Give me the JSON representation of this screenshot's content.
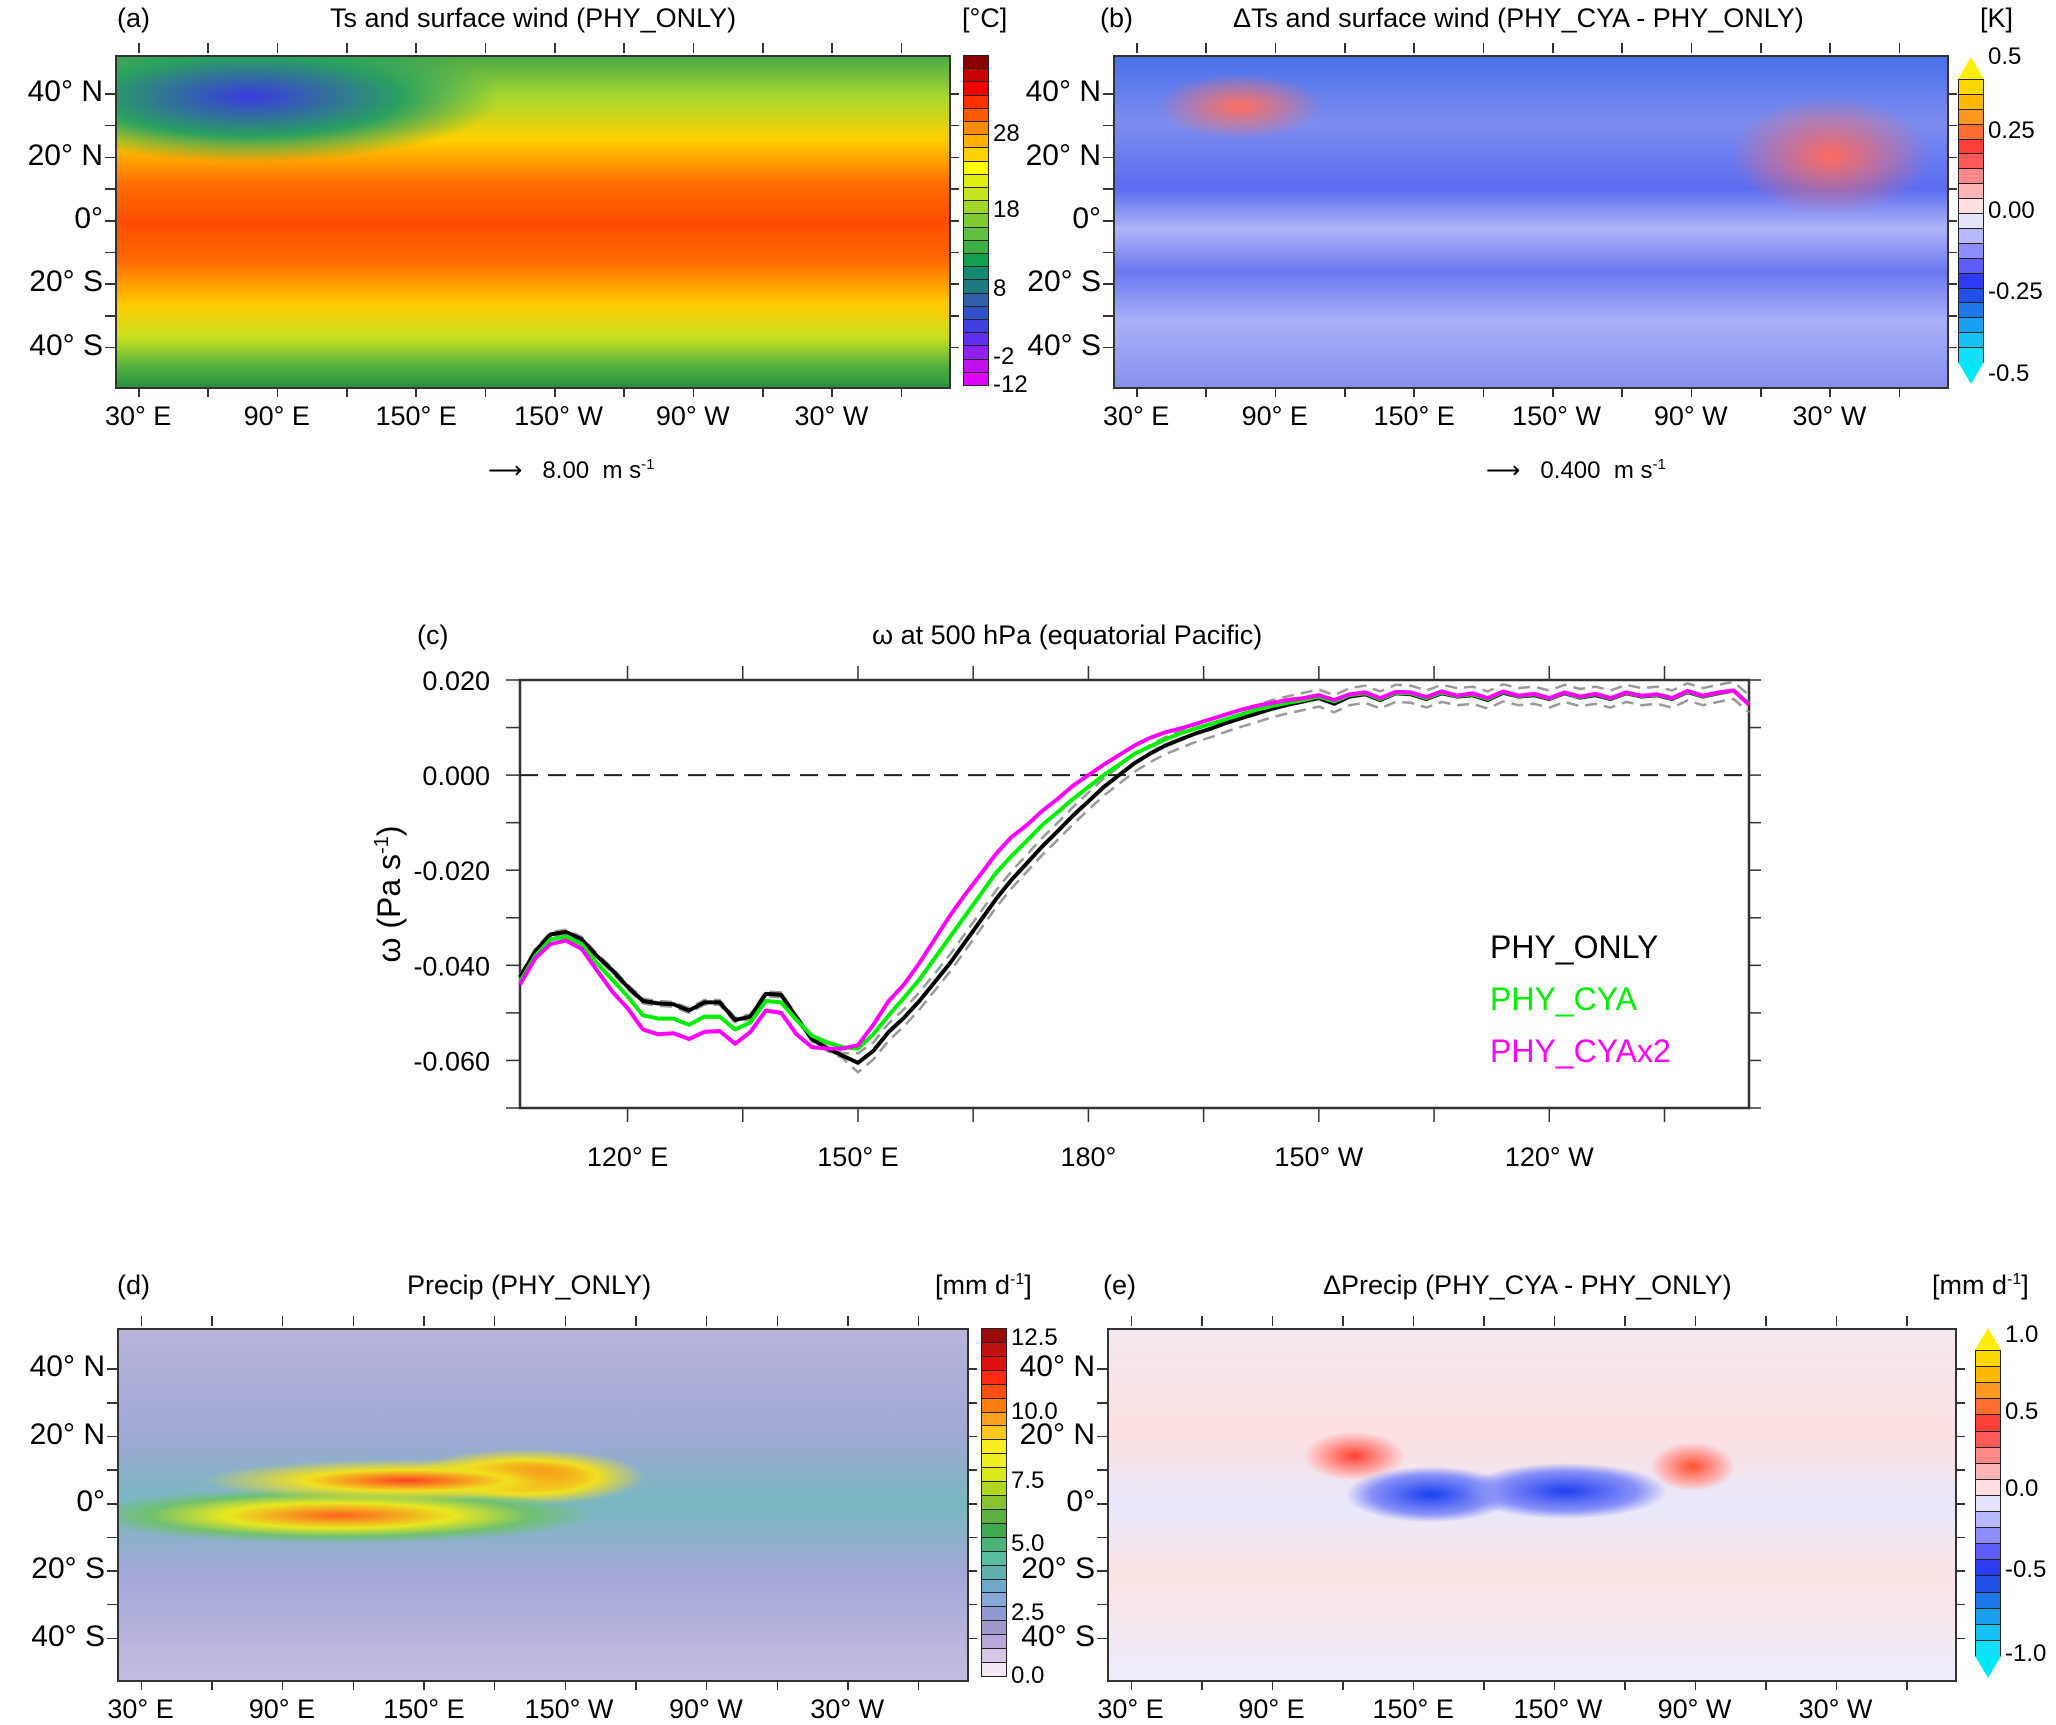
{
  "figure": {
    "panels": {
      "a": {
        "letter": "(a)",
        "title": "Ts and surface wind (PHY_ONLY)",
        "units": "[°C]",
        "lat_labels": [
          "40° N",
          "20° N",
          "0°",
          "20° S",
          "40° S"
        ],
        "lon_labels": [
          "30° E",
          "90° E",
          "150° E",
          "150° W",
          "90° W",
          "30° W"
        ],
        "colorbar": {
          "labels": [
            "28",
            "18",
            "8",
            "-2",
            "-12"
          ],
          "colors": [
            "#8b0000",
            "#c80000",
            "#f00000",
            "#ff3000",
            "#ff5a00",
            "#ff8c00",
            "#ffb000",
            "#ffd200",
            "#ffff00",
            "#e0ef10",
            "#c4e420",
            "#a0d82a",
            "#80cc30",
            "#60c040",
            "#3cb040",
            "#10a050",
            "#108a70",
            "#207880",
            "#3060a8",
            "#3050c8",
            "#4040e0",
            "#6030f0",
            "#9020f0",
            "#c010f0",
            "#e000ff"
          ]
        },
        "ref_vector": {
          "value": "8.00",
          "units_base": "m s",
          "units_exp": "-1"
        }
      },
      "b": {
        "letter": "(b)",
        "title": "ΔTs and surface wind (PHY_CYA - PHY_ONLY)",
        "units": "[K]",
        "lat_labels": [
          "40° N",
          "20° N",
          "0°",
          "20° S",
          "40° S"
        ],
        "lon_labels": [
          "30° E",
          "90° E",
          "150° E",
          "150° W",
          "90° W",
          "30° W"
        ],
        "colorbar": {
          "labels": [
            "0.5",
            "0.25",
            "0.00",
            "-0.25",
            "-0.5"
          ],
          "top_color": "#ffee00",
          "bottom_color": "#00e8f8",
          "colors": [
            "#ffd800",
            "#ffb800",
            "#ff9820",
            "#ff7030",
            "#ff4038",
            "#ff5a5a",
            "#ff8888",
            "#ffb4b4",
            "#ffe0e0",
            "#e4e4ff",
            "#b8b8ff",
            "#8c8cff",
            "#5c5cf8",
            "#2c3cf0",
            "#2050e8",
            "#1c78e8",
            "#1aa0f0",
            "#18c0f8",
            "#10e0f8"
          ]
        },
        "ref_vector": {
          "value": "0.400",
          "units_base": "m s",
          "units_exp": "-1"
        }
      },
      "d": {
        "letter": "(d)",
        "title": "Precip (PHY_ONLY)",
        "units_base": "[mm d",
        "units_exp": "-1",
        "units_close": "]",
        "lat_labels": [
          "40° N",
          "20° N",
          "0°",
          "20° S",
          "40° S"
        ],
        "lon_labels": [
          "30° E",
          "90° E",
          "150° E",
          "150° W",
          "90° W",
          "30° W"
        ],
        "colorbar": {
          "labels": [
            "12.5",
            "10.0",
            "7.5",
            "5.0",
            "2.5",
            "0.0"
          ],
          "colors": [
            "#9a0a0a",
            "#c01010",
            "#e01010",
            "#ff2a10",
            "#ff5010",
            "#ff7c10",
            "#ffa020",
            "#ffc820",
            "#f8ee20",
            "#f0f020",
            "#d8e818",
            "#b0d820",
            "#88c430",
            "#5cb040",
            "#40a850",
            "#48b478",
            "#58bca0",
            "#60b0b0",
            "#70a8c8",
            "#88a8d8",
            "#9098d0",
            "#a098c8",
            "#b8a8d8",
            "#d8c8e8",
            "#f4e8f4"
          ]
        }
      },
      "e": {
        "letter": "(e)",
        "title": "ΔPrecip (PHY_CYA - PHY_ONLY)",
        "units_base": "[mm d",
        "units_exp": "-1",
        "units_close": "]",
        "lat_labels": [
          "40° N",
          "20° N",
          "0°",
          "20° S",
          "40° S"
        ],
        "lon_labels": [
          "30° E",
          "90° E",
          "150° E",
          "150° W",
          "90° W",
          "30° W"
        ],
        "colorbar": {
          "labels": [
            "1.0",
            "0.5",
            "0.0",
            "-0.5",
            "-1.0"
          ],
          "top_color": "#ffee00",
          "bottom_color": "#00e8f8",
          "colors": [
            "#ffd800",
            "#ffb800",
            "#ff9820",
            "#ff7030",
            "#ff4038",
            "#ff5a5a",
            "#ff8888",
            "#ffb4b4",
            "#ffe0e0",
            "#e4e4ff",
            "#b8b8ff",
            "#8c8cff",
            "#5c5cf8",
            "#2c3cf0",
            "#2050e8",
            "#1c78e8",
            "#1aa0f0",
            "#18c0f8",
            "#10e0f8"
          ]
        }
      }
    }
  },
  "chart_data": {
    "type": "line",
    "letter": "(c)",
    "title": "ω at 500 hPa (equatorial Pacific)",
    "xlabel": "",
    "ylabel_base": "ω (Pa s",
    "ylabel_exp": "-1",
    "ylabel_close": ")",
    "xlim": [
      106,
      266
    ],
    "ylim": [
      -0.07,
      0.02
    ],
    "x_ticks": [
      120,
      135,
      150,
      165,
      180,
      195,
      210,
      225,
      240,
      255
    ],
    "x_tick_labels": [
      {
        "x": 120,
        "label": "120°  E"
      },
      {
        "x": 150,
        "label": "150°  E"
      },
      {
        "x": 180,
        "label": "180°"
      },
      {
        "x": 210,
        "label": "150° W"
      },
      {
        "x": 240,
        "label": "120° W"
      }
    ],
    "y_ticks": [
      0.02,
      0.01,
      0.0,
      -0.01,
      -0.02,
      -0.03,
      -0.04,
      -0.05,
      -0.06,
      -0.07
    ],
    "y_tick_labels": [
      "0.020",
      "0.000",
      "-0.020",
      "-0.040",
      "-0.060"
    ],
    "zero_line": true,
    "legend": {
      "placement": "lower-right",
      "entries": [
        "PHY_ONLY",
        "PHY_CYA",
        "PHY_CYAx2"
      ]
    },
    "x": [
      106,
      108,
      110,
      112,
      114,
      116,
      118,
      120,
      122,
      124,
      126,
      128,
      130,
      132,
      134,
      136,
      138,
      140,
      142,
      144,
      146,
      148,
      150,
      152,
      154,
      156,
      158,
      160,
      162,
      164,
      166,
      168,
      170,
      172,
      174,
      176,
      178,
      180,
      182,
      184,
      186,
      188,
      190,
      192,
      194,
      196,
      198,
      200,
      202,
      204,
      206,
      208,
      210,
      212,
      214,
      216,
      218,
      220,
      222,
      224,
      226,
      228,
      230,
      232,
      234,
      236,
      238,
      240,
      242,
      244,
      246,
      248,
      250,
      252,
      254,
      256,
      258,
      260,
      262,
      264,
      266
    ],
    "series": [
      {
        "name": "PHY_ONLY",
        "color": "#000000",
        "values": [
          -0.0425,
          -0.037,
          -0.0335,
          -0.033,
          -0.0345,
          -0.038,
          -0.041,
          -0.0445,
          -0.0475,
          -0.048,
          -0.0482,
          -0.0495,
          -0.0478,
          -0.0478,
          -0.0515,
          -0.0508,
          -0.046,
          -0.0462,
          -0.051,
          -0.0555,
          -0.0575,
          -0.059,
          -0.0605,
          -0.058,
          -0.054,
          -0.051,
          -0.0475,
          -0.0435,
          -0.0395,
          -0.035,
          -0.0305,
          -0.026,
          -0.022,
          -0.0185,
          -0.015,
          -0.0118,
          -0.0085,
          -0.0055,
          -0.0025,
          0.0,
          0.0025,
          0.0045,
          0.0062,
          0.0075,
          0.0088,
          0.0098,
          0.011,
          0.012,
          0.013,
          0.014,
          0.0148,
          0.0155,
          0.0162,
          0.015,
          0.0165,
          0.017,
          0.0158,
          0.0172,
          0.017,
          0.016,
          0.0172,
          0.0165,
          0.0168,
          0.0158,
          0.0173,
          0.0165,
          0.0168,
          0.016,
          0.0172,
          0.0163,
          0.0168,
          0.016,
          0.0172,
          0.0165,
          0.0168,
          0.016,
          0.0175,
          0.0165,
          0.0172,
          0.0178,
          0.015
        ]
      },
      {
        "name": "PHY_CYA",
        "color": "#00ee00",
        "values": [
          -0.0435,
          -0.038,
          -0.0345,
          -0.034,
          -0.0355,
          -0.0395,
          -0.043,
          -0.0465,
          -0.0505,
          -0.0512,
          -0.0512,
          -0.0525,
          -0.0508,
          -0.0508,
          -0.0535,
          -0.052,
          -0.0475,
          -0.0478,
          -0.0515,
          -0.0548,
          -0.0562,
          -0.0572,
          -0.0575,
          -0.0545,
          -0.0505,
          -0.0468,
          -0.043,
          -0.0385,
          -0.034,
          -0.0295,
          -0.025,
          -0.0205,
          -0.017,
          -0.0138,
          -0.0105,
          -0.0078,
          -0.005,
          -0.0025,
          0.0,
          0.0022,
          0.0045,
          0.006,
          0.0075,
          0.0088,
          0.0098,
          0.0108,
          0.0118,
          0.0128,
          0.0138,
          0.0146,
          0.0152,
          0.0158,
          0.0165,
          0.0155,
          0.0168,
          0.0172,
          0.016,
          0.0173,
          0.0172,
          0.0162,
          0.0174,
          0.0166,
          0.017,
          0.016,
          0.0175,
          0.0166,
          0.017,
          0.0161,
          0.0173,
          0.0164,
          0.017,
          0.0161,
          0.0173,
          0.0166,
          0.0169,
          0.0161,
          0.0176,
          0.0166,
          0.0173,
          0.0178,
          0.015
        ]
      },
      {
        "name": "PHY_CYAx2",
        "color": "#ff00ff",
        "values": [
          -0.044,
          -0.0385,
          -0.0355,
          -0.0348,
          -0.0365,
          -0.041,
          -0.0455,
          -0.049,
          -0.0535,
          -0.0545,
          -0.0543,
          -0.0555,
          -0.054,
          -0.0538,
          -0.0565,
          -0.054,
          -0.0495,
          -0.05,
          -0.0545,
          -0.0572,
          -0.0575,
          -0.0575,
          -0.0568,
          -0.0525,
          -0.0475,
          -0.044,
          -0.0395,
          -0.0345,
          -0.0295,
          -0.025,
          -0.0208,
          -0.0165,
          -0.013,
          -0.0105,
          -0.0075,
          -0.005,
          -0.0022,
          0.0,
          0.0022,
          0.0042,
          0.0062,
          0.0078,
          0.009,
          0.0098,
          0.0108,
          0.0118,
          0.0128,
          0.0138,
          0.0146,
          0.0152,
          0.0158,
          0.0162,
          0.0168,
          0.0158,
          0.017,
          0.0174,
          0.0162,
          0.0175,
          0.0174,
          0.0164,
          0.0176,
          0.0167,
          0.0172,
          0.0162,
          0.0176,
          0.0167,
          0.0171,
          0.0162,
          0.0174,
          0.0165,
          0.0171,
          0.0162,
          0.0174,
          0.0167,
          0.017,
          0.0162,
          0.0177,
          0.0167,
          0.0174,
          0.0178,
          0.0148
        ]
      },
      {
        "name": "PHY_ONLY spread (upper)",
        "color": "#999999",
        "dashed": true,
        "values": [
          -0.042,
          -0.0365,
          -0.033,
          -0.0325,
          -0.034,
          -0.0375,
          -0.0405,
          -0.044,
          -0.047,
          -0.0475,
          -0.0477,
          -0.049,
          -0.0473,
          -0.0473,
          -0.051,
          -0.0503,
          -0.0455,
          -0.0457,
          -0.0505,
          -0.055,
          -0.057,
          -0.0585,
          -0.0585,
          -0.0562,
          -0.0522,
          -0.0492,
          -0.0457,
          -0.0417,
          -0.0377,
          -0.0332,
          -0.0287,
          -0.0242,
          -0.0202,
          -0.0167,
          -0.0132,
          -0.01,
          -0.0067,
          -0.0037,
          -0.0007,
          0.0018,
          0.0043,
          0.0063,
          0.008,
          0.0093,
          0.0106,
          0.0116,
          0.0128,
          0.0138,
          0.0148,
          0.0158,
          0.0166,
          0.0173,
          0.018,
          0.0168,
          0.0183,
          0.0188,
          0.0176,
          0.019,
          0.0188,
          0.0178,
          0.019,
          0.0183,
          0.0186,
          0.0176,
          0.0191,
          0.0183,
          0.0186,
          0.0178,
          0.019,
          0.0181,
          0.0186,
          0.0178,
          0.019,
          0.0183,
          0.0186,
          0.0178,
          0.0193,
          0.0183,
          0.019,
          0.0196,
          0.0168
        ]
      },
      {
        "name": "PHY_ONLY spread (lower)",
        "color": "#999999",
        "dashed": true,
        "values": [
          -0.043,
          -0.0375,
          -0.034,
          -0.0335,
          -0.035,
          -0.0385,
          -0.0415,
          -0.045,
          -0.048,
          -0.0485,
          -0.0487,
          -0.05,
          -0.0483,
          -0.0483,
          -0.052,
          -0.0513,
          -0.0465,
          -0.0467,
          -0.0515,
          -0.056,
          -0.058,
          -0.0595,
          -0.0625,
          -0.0598,
          -0.0558,
          -0.0528,
          -0.0493,
          -0.0453,
          -0.0413,
          -0.0368,
          -0.0323,
          -0.0278,
          -0.0238,
          -0.0203,
          -0.0168,
          -0.0136,
          -0.0103,
          -0.0073,
          -0.0043,
          -0.0018,
          0.0007,
          0.0027,
          0.0044,
          0.0057,
          0.007,
          0.008,
          0.0092,
          0.0102,
          0.0112,
          0.0122,
          0.013,
          0.0137,
          0.0144,
          0.0132,
          0.0147,
          0.0152,
          0.014,
          0.0154,
          0.0152,
          0.0142,
          0.0154,
          0.0147,
          0.015,
          0.014,
          0.0155,
          0.0147,
          0.015,
          0.0142,
          0.0154,
          0.0145,
          0.015,
          0.0142,
          0.0154,
          0.0147,
          0.015,
          0.0142,
          0.0157,
          0.0147,
          0.0154,
          0.016,
          0.0132
        ]
      }
    ]
  }
}
